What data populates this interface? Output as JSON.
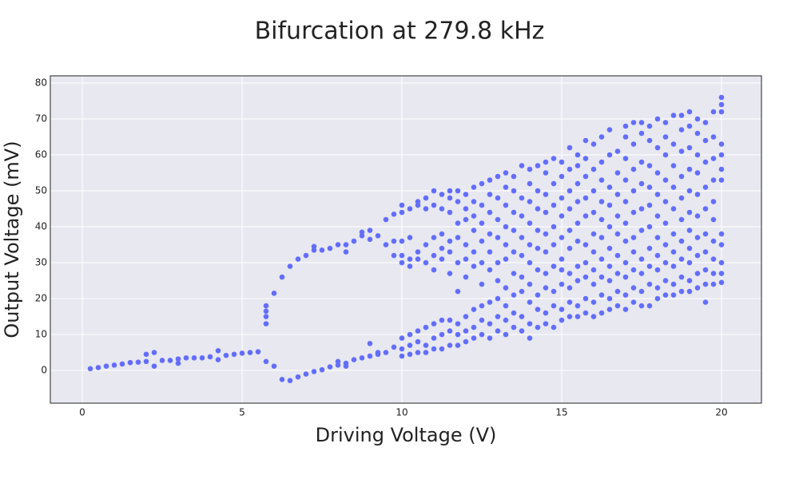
{
  "chart_data": {
    "type": "scatter",
    "title": "Bifurcation at 279.8 kHz",
    "x_label": "Driving Voltage (V)",
    "y_label": "Output Voltage (mV)",
    "xlim": [
      -1,
      21.25
    ],
    "ylim": [
      -9.1,
      82
    ],
    "xticks": [
      0,
      5,
      10,
      15,
      20
    ],
    "yticks": [
      0,
      10,
      20,
      30,
      40,
      50,
      60,
      70,
      80
    ],
    "grid": true,
    "color": "#636efa",
    "x": [
      0.25,
      0.5,
      0.75,
      1,
      1.25,
      1.5,
      1.75,
      2,
      2,
      2.25,
      2.25,
      2.5,
      2.75,
      3,
      3,
      3.25,
      3.5,
      3.75,
      4,
      4.25,
      4.25,
      4.5,
      4.75,
      5,
      5.25,
      5.5,
      5.75,
      6,
      6.25,
      6.5,
      6.75,
      7,
      7.25,
      7.5,
      7.75,
      8,
      8,
      8.25,
      8.25,
      8.5,
      8.75,
      9,
      9,
      9.25,
      9.25,
      9.5,
      9.75,
      5.75,
      5.75,
      5.75,
      5.75,
      6,
      6.25,
      6.5,
      6.75,
      7,
      7.25,
      7.25,
      7.5,
      7.75,
      8,
      8.25,
      8.25,
      8.5,
      8.75,
      8.75,
      9,
      9,
      9.25,
      9.5,
      9.5,
      9.75,
      9.75,
      9.75,
      10,
      10,
      10,
      10,
      10,
      10,
      10,
      10,
      10.25,
      10.25,
      10.25,
      10.25,
      10.25,
      10.25,
      10.25,
      10.5,
      10.5,
      10.5,
      10.5,
      10.5,
      10.5,
      10.5,
      10.75,
      10.75,
      10.75,
      10.75,
      10.75,
      10.75,
      10.75,
      11,
      11,
      11,
      11,
      11,
      11,
      11,
      11,
      11.25,
      11.25,
      11.25,
      11.25,
      11.25,
      11.25,
      11.25,
      11.25,
      11.5,
      11.5,
      11.5,
      11.5,
      11.5,
      11.5,
      11.5,
      11.5,
      11.5,
      11.75,
      11.75,
      11.75,
      11.75,
      11.75,
      11.75,
      11.75,
      11.75,
      11.75,
      12,
      12,
      12,
      12,
      12,
      12,
      12,
      12,
      12,
      12.25,
      12.25,
      12.25,
      12.25,
      12.25,
      12.25,
      12.25,
      12.25,
      12.25,
      12.5,
      12.5,
      12.5,
      12.5,
      12.5,
      12.5,
      12.5,
      12.5,
      12.5,
      12.75,
      12.75,
      12.75,
      12.75,
      12.75,
      12.75,
      12.75,
      12.75,
      12.75,
      13,
      13,
      13,
      13,
      13,
      13,
      13,
      13,
      13,
      13.25,
      13.25,
      13.25,
      13.25,
      13.25,
      13.25,
      13.25,
      13.25,
      13.25,
      13.25,
      13.5,
      13.5,
      13.5,
      13.5,
      13.5,
      13.5,
      13.5,
      13.5,
      13.5,
      13.75,
      13.75,
      13.75,
      13.75,
      13.75,
      13.75,
      13.75,
      13.75,
      13.75,
      14,
      14,
      14,
      14,
      14,
      14,
      14,
      14,
      14,
      14,
      14.25,
      14.25,
      14.25,
      14.25,
      14.25,
      14.25,
      14.25,
      14.25,
      14.25,
      14.5,
      14.5,
      14.5,
      14.5,
      14.5,
      14.5,
      14.5,
      14.5,
      14.5,
      14.5,
      14.75,
      14.75,
      14.75,
      14.75,
      14.75,
      14.75,
      14.75,
      14.75,
      14.75,
      15,
      15,
      15,
      15,
      15,
      15,
      15,
      15,
      15,
      15,
      15.25,
      15.25,
      15.25,
      15.25,
      15.25,
      15.25,
      15.25,
      15.25,
      15.25,
      15.25,
      15.5,
      15.5,
      15.5,
      15.5,
      15.5,
      15.5,
      15.5,
      15.5,
      15.5,
      15.5,
      15.75,
      15.75,
      15.75,
      15.75,
      15.75,
      15.75,
      15.75,
      15.75,
      15.75,
      15.75,
      16,
      16,
      16,
      16,
      16,
      16,
      16,
      16,
      16,
      16,
      16.25,
      16.25,
      16.25,
      16.25,
      16.25,
      16.25,
      16.25,
      16.25,
      16.25,
      16.25,
      16.5,
      16.5,
      16.5,
      16.5,
      16.5,
      16.5,
      16.5,
      16.5,
      16.5,
      16.5,
      16.75,
      16.75,
      16.75,
      16.75,
      16.75,
      16.75,
      16.75,
      16.75,
      16.75,
      17,
      17,
      17,
      17,
      17,
      17,
      17,
      17,
      17,
      17,
      17,
      17.25,
      17.25,
      17.25,
      17.25,
      17.25,
      17.25,
      17.25,
      17.25,
      17.25,
      17.25,
      17.5,
      17.5,
      17.5,
      17.5,
      17.5,
      17.5,
      17.5,
      17.5,
      17.5,
      17.5,
      17.75,
      17.75,
      17.75,
      17.75,
      17.75,
      17.75,
      17.75,
      17.75,
      17.75,
      17.75,
      18,
      18,
      18,
      18,
      18,
      18,
      18,
      18,
      18,
      18,
      18.25,
      18.25,
      18.25,
      18.25,
      18.25,
      18.25,
      18.25,
      18.25,
      18.25,
      18.25,
      18.5,
      18.5,
      18.5,
      18.5,
      18.5,
      18.5,
      18.5,
      18.5,
      18.5,
      18.5,
      18.75,
      18.75,
      18.75,
      18.75,
      18.75,
      18.75,
      18.75,
      18.75,
      18.75,
      18.75,
      19,
      19,
      19,
      19,
      19,
      19,
      19,
      19,
      19,
      19,
      19,
      19.25,
      19.25,
      19.25,
      19.25,
      19.25,
      19.25,
      19.25,
      19.25,
      19.25,
      19.25,
      19.5,
      19.5,
      19.5,
      19.5,
      19.5,
      19.5,
      19.5,
      19.5,
      19.5,
      19.5,
      19.75,
      19.75,
      19.75,
      19.75,
      19.75,
      19.75,
      19.75,
      19.75,
      19.75,
      19.75,
      20,
      20,
      20,
      20,
      20,
      20,
      20,
      20,
      20,
      20,
      20,
      20
    ],
    "y": [
      0.5,
      0.8,
      1.2,
      1.5,
      1.8,
      2.2,
      2.3,
      2.5,
      4.5,
      1.2,
      5,
      2.8,
      2.8,
      3.2,
      2,
      3.5,
      3.5,
      3.5,
      3.8,
      3,
      5.5,
      4.2,
      4.5,
      4.8,
      5,
      5.2,
      2.5,
      1.2,
      -2.5,
      -2.8,
      -1.8,
      -1,
      -0.3,
      0.2,
      1,
      1.5,
      2.5,
      1.2,
      2,
      3,
      3.5,
      4,
      7.5,
      4.5,
      5,
      5,
      6.5,
      13,
      15,
      16.5,
      18,
      21.5,
      26,
      29,
      31,
      32,
      33.5,
      34.5,
      33.5,
      34,
      35,
      35,
      33,
      36,
      37.5,
      38.5,
      36.5,
      39,
      37.5,
      42,
      35,
      43.5,
      36,
      32,
      4,
      6,
      9,
      30,
      32,
      36,
      44,
      46,
      4.5,
      7,
      10,
      29,
      31,
      37,
      45,
      5,
      8,
      11,
      31,
      33,
      46,
      47,
      5,
      7,
      12,
      30,
      35,
      45,
      48,
      6,
      9,
      13,
      28,
      32,
      37,
      46,
      50,
      6,
      10,
      14,
      31,
      34,
      38,
      45,
      49,
      7,
      11,
      14,
      27,
      33,
      36,
      44,
      48,
      50,
      7,
      10,
      13,
      22,
      30,
      37,
      41,
      47,
      50,
      8,
      11,
      15,
      26,
      31,
      35,
      42,
      45,
      49,
      9,
      12,
      17,
      29,
      33,
      39,
      43,
      47,
      51,
      10,
      14,
      18,
      24,
      30,
      36,
      41,
      46,
      52,
      9,
      13,
      19,
      28,
      33,
      38,
      44,
      49,
      53,
      11,
      15,
      20,
      25,
      30,
      37,
      42,
      48,
      54,
      10,
      14,
      18,
      23,
      31,
      35,
      40,
      46,
      51,
      55,
      12,
      16,
      21,
      27,
      33,
      39,
      44,
      50,
      54,
      11,
      15,
      22,
      26,
      32,
      37,
      43,
      48,
      57,
      9,
      13,
      19,
      24,
      30,
      35,
      41,
      47,
      52,
      56,
      12,
      17,
      21,
      28,
      34,
      39,
      45,
      50,
      57,
      13,
      16,
      23,
      27,
      33,
      38,
      44,
      49,
      55,
      58,
      12,
      18,
      22,
      29,
      35,
      40,
      46,
      52,
      59,
      14,
      17,
      24,
      28,
      31,
      37,
      43,
      48,
      54,
      58,
      15,
      19,
      23,
      27,
      34,
      39,
      45,
      50,
      56,
      62,
      15,
      18,
      25,
      29,
      36,
      41,
      47,
      52,
      57,
      60,
      16,
      20,
      26,
      30,
      35,
      43,
      48,
      54,
      59,
      64,
      15,
      19,
      24,
      28,
      33,
      38,
      44,
      50,
      56,
      63,
      16,
      21,
      26,
      31,
      37,
      42,
      47,
      53,
      58,
      65,
      17,
      20,
      25,
      29,
      34,
      40,
      46,
      51,
      60,
      67,
      18,
      22,
      27,
      32,
      38,
      43,
      49,
      55,
      61,
      17,
      21,
      26,
      30,
      36,
      41,
      47,
      53,
      59,
      65,
      68,
      19,
      23,
      28,
      33,
      37,
      44,
      50,
      56,
      63,
      69,
      18,
      22,
      27,
      31,
      39,
      45,
      52,
      58,
      66,
      69,
      18,
      24,
      29,
      34,
      40,
      46,
      51,
      57,
      64,
      68,
      20,
      23,
      28,
      32,
      37,
      43,
      49,
      55,
      62,
      70,
      21,
      25,
      30,
      35,
      41,
      47,
      53,
      60,
      65,
      69,
      21,
      24,
      29,
      33,
      38,
      45,
      51,
      57,
      63,
      71,
      22,
      26,
      31,
      36,
      42,
      48,
      54,
      61,
      67,
      71,
      22,
      25,
      30,
      34,
      39,
      44,
      50,
      56,
      62,
      68,
      72,
      23,
      27,
      32,
      37,
      43,
      49,
      55,
      60,
      66,
      70,
      19,
      24,
      28,
      33,
      38,
      45,
      51,
      58,
      64,
      69,
      24,
      27,
      31,
      36,
      42,
      47,
      53,
      59,
      65,
      72,
      24.5,
      27,
      30,
      35,
      38,
      53,
      56,
      60,
      63,
      72,
      74,
      76
    ]
  }
}
